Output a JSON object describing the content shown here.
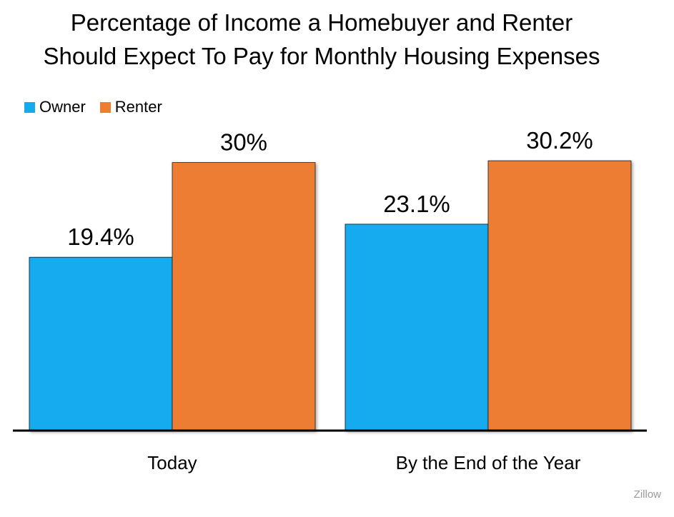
{
  "chart_data": {
    "type": "bar",
    "title": "Percentage of Income a Homebuyer and Renter Should Expect To Pay for Monthly Housing Expenses",
    "title_lines": [
      "Percentage of Income a Homebuyer and Renter",
      "Should Expect To Pay for Monthly Housing Expenses"
    ],
    "categories": [
      "Today",
      "By the End of the Year"
    ],
    "series": [
      {
        "name": "Owner",
        "values": [
          19.4,
          23.1
        ],
        "labels": [
          "19.4%",
          "23.1%"
        ],
        "color": "#13aaee"
      },
      {
        "name": "Renter",
        "values": [
          30,
          30.2
        ],
        "labels": [
          "30%",
          "30.2%"
        ],
        "color": "#ed7d31"
      }
    ],
    "ylim": [
      0,
      37
    ],
    "grid": false,
    "legend_position": "top-left"
  },
  "source": "Zillow"
}
